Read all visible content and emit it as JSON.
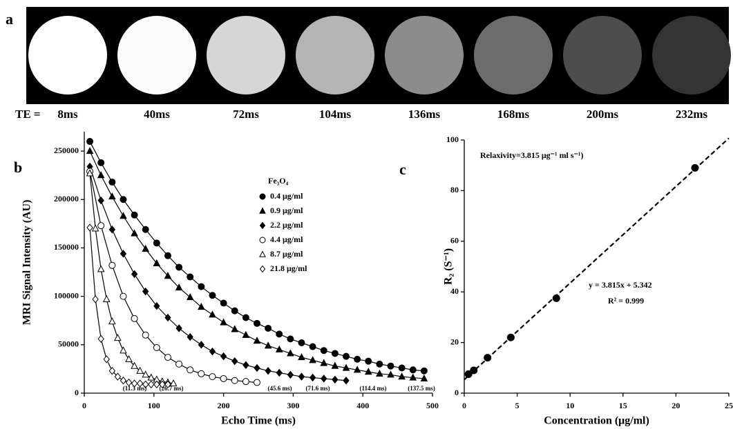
{
  "panel_a": {
    "label": "a",
    "te_prefix": "TE  =",
    "echo_times": [
      "8ms",
      "40ms",
      "72ms",
      "104ms",
      "136ms",
      "168ms",
      "200ms",
      "232ms"
    ],
    "image_colors": [
      "#ffffff",
      "#fafafa",
      "#d6d6d6",
      "#b4b4b4",
      "#8c8c8c",
      "#6c6c6c",
      "#4c4c4c",
      "#343434"
    ]
  },
  "chart_data": [
    {
      "type": "line",
      "panel_label": "b",
      "x_label": "Echo Time (ms)",
      "y_label": "MRI Signal Intensity (AU)",
      "xlim": [
        0,
        500
      ],
      "xticks": [
        0,
        100,
        200,
        300,
        400,
        500
      ],
      "ylim": [
        0,
        270000
      ],
      "yticks": [
        0,
        50000,
        100000,
        150000,
        200000,
        250000
      ],
      "grid": false,
      "legend_title": "Fe₃O₄",
      "series": [
        {
          "name": "0.4 μg/ml",
          "color": "#000000",
          "marker": "circle",
          "filled": true,
          "annotation": "(137.5 ms)",
          "x": [
            8,
            24,
            40,
            56,
            72,
            88,
            104,
            120,
            136,
            152,
            168,
            184,
            200,
            216,
            232,
            248,
            264,
            280,
            296,
            312,
            328,
            344,
            360,
            376,
            392,
            408,
            424,
            440,
            456,
            472,
            488
          ],
          "values": [
            260000,
            238000,
            218000,
            200000,
            184000,
            169000,
            155000,
            142000,
            130000,
            120000,
            110000,
            101000,
            93000,
            85000,
            78000,
            72000,
            67000,
            61000,
            56000,
            52000,
            48000,
            44000,
            41000,
            38000,
            35000,
            33000,
            30000,
            28000,
            26000,
            24000,
            23000
          ]
        },
        {
          "name": "0.9 μg/ml",
          "color": "#000000",
          "marker": "triangle",
          "filled": true,
          "annotation": "(114.4 ms)",
          "x": [
            8,
            24,
            40,
            56,
            72,
            88,
            104,
            120,
            136,
            152,
            168,
            184,
            200,
            216,
            232,
            248,
            264,
            280,
            296,
            312,
            328,
            344,
            360,
            376,
            392,
            408,
            424,
            440,
            456,
            472,
            488
          ],
          "values": [
            250000,
            225000,
            203000,
            183000,
            165000,
            149000,
            134000,
            121000,
            109000,
            99000,
            89000,
            81000,
            73000,
            66000,
            60000,
            54000,
            49000,
            45000,
            41000,
            37000,
            34000,
            31000,
            28000,
            26000,
            24000,
            22000,
            20000,
            19000,
            17000,
            16000,
            15000
          ]
        },
        {
          "name": "2.2 μg/ml",
          "color": "#000000",
          "marker": "diamond",
          "filled": true,
          "annotation": "(71.6 ms)",
          "x": [
            8,
            24,
            40,
            56,
            72,
            88,
            104,
            120,
            136,
            152,
            168,
            184,
            200,
            216,
            232,
            248,
            264,
            280,
            296,
            312,
            328,
            344,
            360,
            376
          ],
          "values": [
            234000,
            199000,
            169000,
            144000,
            123000,
            105000,
            90000,
            78000,
            67000,
            58000,
            50000,
            43000,
            38000,
            33000,
            29000,
            26000,
            23000,
            21000,
            19000,
            17000,
            16000,
            15000,
            14000,
            13000
          ]
        },
        {
          "name": "4.4 μg/ml",
          "color": "#000000",
          "marker": "circle",
          "filled": false,
          "annotation": "(45.6 ms)",
          "x": [
            8,
            24,
            40,
            56,
            72,
            88,
            104,
            120,
            136,
            152,
            168,
            184,
            200,
            216,
            232,
            248
          ],
          "values": [
            229000,
            173000,
            132000,
            100000,
            77000,
            60000,
            47000,
            37000,
            30000,
            24000,
            20000,
            17000,
            15000,
            13000,
            12000,
            11000
          ]
        },
        {
          "name": "8.7 μg/ml",
          "color": "#000000",
          "marker": "triangle",
          "filled": false,
          "annotation": "(26.7 ms)",
          "x": [
            8,
            16,
            24,
            32,
            40,
            48,
            56,
            64,
            72,
            80,
            88,
            96,
            104,
            112,
            120,
            128
          ],
          "values": [
            227000,
            170000,
            128000,
            97000,
            74000,
            57000,
            44000,
            35000,
            28000,
            23000,
            19000,
            16000,
            14000,
            12000,
            11000,
            10000
          ]
        },
        {
          "name": "21.8 μg/ml",
          "color": "#000000",
          "marker": "diamond",
          "filled": false,
          "annotation": "(11.3 ms)",
          "x": [
            8,
            16,
            24,
            32,
            40,
            48,
            56,
            64,
            72,
            80,
            88,
            96,
            104,
            112,
            120
          ],
          "values": [
            171000,
            97000,
            56000,
            35000,
            23000,
            17000,
            13000,
            11000,
            10000,
            10000,
            9000,
            9000,
            9000,
            9000,
            9000
          ]
        }
      ]
    },
    {
      "type": "scatter",
      "panel_label": "c",
      "x_label": "Concentration (μg/ml)",
      "y_label": "R₂ (S⁻¹)",
      "annotation": "Relaxivity=3.815 μg⁻¹ ml s⁻¹)",
      "equation": "y = 3.815x + 5.342",
      "r_squared": "R² = 0.999",
      "xlim": [
        0,
        25
      ],
      "xticks": [
        0,
        5,
        10,
        15,
        20,
        25
      ],
      "ylim": [
        0,
        100
      ],
      "yticks": [
        0,
        20,
        40,
        60,
        80,
        100
      ],
      "grid": false,
      "x": [
        0.4,
        0.9,
        2.2,
        4.4,
        8.7,
        21.8
      ],
      "values": [
        7.5,
        9.0,
        14.0,
        22.0,
        37.5,
        89.0
      ],
      "color": "#000000",
      "fit_line": {
        "x": [
          0,
          25
        ],
        "values": [
          5.342,
          100.717
        ],
        "color": "#000000"
      }
    }
  ]
}
